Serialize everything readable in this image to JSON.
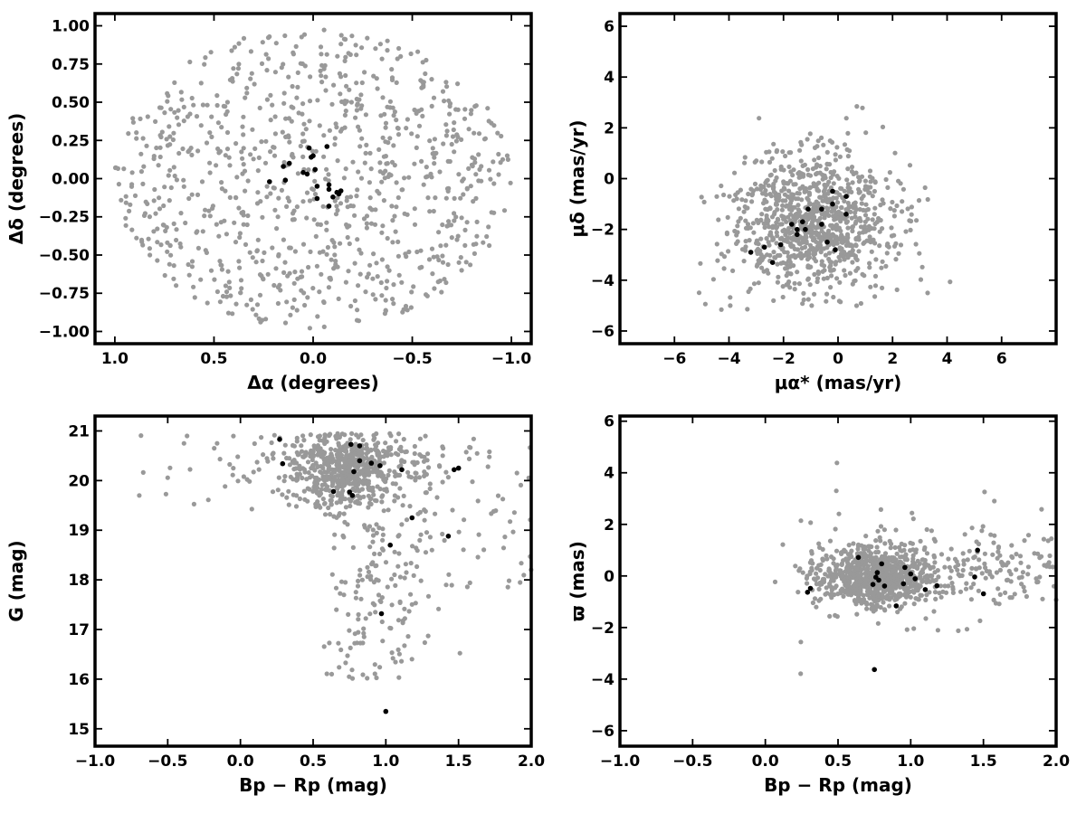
{
  "chart_data": [
    {
      "type": "scatter",
      "id": "sky",
      "xlabel": "Δα (degrees)",
      "ylabel": "Δδ (degrees)",
      "xlim": [
        1.1,
        -1.1
      ],
      "ylim": [
        -1.08,
        1.08
      ],
      "x_ticks": [
        1.0,
        0.5,
        0.0,
        -0.5,
        -1.0
      ],
      "x_tick_labels": [
        "1.0",
        "0.5",
        "0.0",
        "−0.5",
        "−1.0"
      ],
      "y_ticks": [
        -1.0,
        -0.75,
        -0.5,
        -0.25,
        0.0,
        0.25,
        0.5,
        0.75,
        1.0
      ],
      "y_tick_labels": [
        "−1.00",
        "−0.75",
        "−0.50",
        "−0.25",
        "0.00",
        "0.25",
        "0.50",
        "0.75",
        "1.00"
      ],
      "series": [
        {
          "color": "#999999",
          "generated": {
            "shape": "disk",
            "cx": 0.0,
            "cy": 0.0,
            "rx": 1.0,
            "ry": 0.98,
            "n": 900,
            "seed": 11
          }
        },
        {
          "color": "#000000",
          "points": [
            [
              0.02,
              0.2
            ],
            [
              0.0,
              0.15
            ],
            [
              0.01,
              0.14
            ],
            [
              -0.07,
              0.21
            ],
            [
              0.12,
              0.1
            ],
            [
              0.15,
              0.08
            ],
            [
              -0.01,
              0.06
            ],
            [
              -0.13,
              -0.1
            ],
            [
              0.03,
              0.03
            ],
            [
              0.14,
              -0.01
            ],
            [
              0.22,
              -0.02
            ],
            [
              -0.08,
              -0.04
            ],
            [
              -0.02,
              -0.05
            ],
            [
              -0.08,
              -0.07
            ],
            [
              -0.12,
              -0.09
            ],
            [
              -0.14,
              -0.08
            ],
            [
              -0.1,
              -0.12
            ],
            [
              -0.02,
              -0.13
            ],
            [
              -0.08,
              -0.18
            ],
            [
              0.05,
              0.04
            ]
          ]
        }
      ]
    },
    {
      "type": "scatter",
      "id": "pm",
      "xlabel": "μα* (mas/yr)",
      "ylabel": "μδ (mas/yr)",
      "xlim": [
        -8,
        8
      ],
      "ylim": [
        -6.5,
        6.5
      ],
      "x_ticks": [
        -6,
        -4,
        -2,
        0,
        2,
        4,
        6
      ],
      "x_tick_labels": [
        "−6",
        "−4",
        "−2",
        "0",
        "2",
        "4",
        "6"
      ],
      "y_ticks": [
        -6,
        -4,
        -2,
        0,
        2,
        4,
        6
      ],
      "y_tick_labels": [
        "−6",
        "−4",
        "−2",
        "0",
        "2",
        "4",
        "6"
      ],
      "series": [
        {
          "color": "#999999",
          "generated": {
            "shape": "gauss",
            "cx": -1.0,
            "cy": -1.8,
            "sx": 1.5,
            "sy": 1.4,
            "n": 950,
            "seed": 23,
            "clip": [
              -5.2,
              4.8,
              -5.2,
              5.0
            ]
          }
        },
        {
          "color": "#000000",
          "points": [
            [
              -0.2,
              -0.5
            ],
            [
              0.3,
              -0.7
            ],
            [
              -0.6,
              -1.2
            ],
            [
              -0.2,
              -1.0
            ],
            [
              0.3,
              -1.4
            ],
            [
              -1.1,
              -1.2
            ],
            [
              -1.3,
              -1.7
            ],
            [
              -0.6,
              -1.8
            ],
            [
              -1.7,
              -1.8
            ],
            [
              -1.5,
              -2.0
            ],
            [
              -1.2,
              -2.0
            ],
            [
              -1.5,
              -2.2
            ],
            [
              -0.4,
              -2.5
            ],
            [
              -2.1,
              -2.6
            ],
            [
              -2.7,
              -2.7
            ],
            [
              -0.1,
              -2.8
            ],
            [
              -3.2,
              -2.9
            ],
            [
              -2.4,
              -3.3
            ]
          ]
        }
      ]
    },
    {
      "type": "scatter",
      "id": "cmd",
      "xlabel": "Bp − Rp (mag)",
      "ylabel": "G (mag)",
      "xlim": [
        -1.0,
        2.0
      ],
      "ylim": [
        14.65,
        21.3
      ],
      "x_ticks": [
        -1.0,
        -0.5,
        0.0,
        0.5,
        1.0,
        1.5,
        2.0
      ],
      "x_tick_labels": [
        "−1.0",
        "−0.5",
        "0.0",
        "0.5",
        "1.0",
        "1.5",
        "2.0"
      ],
      "y_ticks": [
        15,
        16,
        17,
        18,
        19,
        20,
        21
      ],
      "y_tick_labels": [
        "15",
        "16",
        "17",
        "18",
        "19",
        "20",
        "21"
      ],
      "series": [
        {
          "color": "#999999",
          "generated": {
            "shape": "cmd",
            "n": 900,
            "seed": 37
          }
        },
        {
          "color": "#000000",
          "points": [
            [
              0.27,
              20.83
            ],
            [
              0.29,
              20.34
            ],
            [
              0.76,
              20.73
            ],
            [
              0.82,
              20.7
            ],
            [
              0.82,
              20.4
            ],
            [
              0.9,
              20.35
            ],
            [
              0.96,
              20.3
            ],
            [
              1.11,
              20.22
            ],
            [
              0.78,
              20.18
            ],
            [
              1.47,
              20.22
            ],
            [
              1.5,
              20.25
            ],
            [
              0.64,
              19.78
            ],
            [
              0.75,
              19.77
            ],
            [
              0.77,
              19.7
            ],
            [
              1.18,
              19.25
            ],
            [
              1.43,
              18.88
            ],
            [
              1.03,
              18.7
            ],
            [
              0.97,
              17.32
            ],
            [
              1.0,
              15.35
            ]
          ]
        }
      ]
    },
    {
      "type": "scatter",
      "id": "parallax",
      "xlabel": "Bp − Rp (mag)",
      "ylabel": "ϖ (mas)",
      "xlim": [
        -1.0,
        2.0
      ],
      "ylim": [
        -6.6,
        6.2
      ],
      "x_ticks": [
        -1.0,
        -0.5,
        0.0,
        0.5,
        1.0,
        1.5,
        2.0
      ],
      "x_tick_labels": [
        "−1.0",
        "−0.5",
        "0.0",
        "0.5",
        "1.0",
        "1.5",
        "2.0"
      ],
      "y_ticks": [
        -6,
        -4,
        -2,
        0,
        2,
        4,
        6
      ],
      "y_tick_labels": [
        "−6",
        "−4",
        "−2",
        "0",
        "2",
        "4",
        "6"
      ],
      "series": [
        {
          "color": "#999999",
          "generated": {
            "shape": "plx",
            "n": 1000,
            "seed": 53
          }
        },
        {
          "color": "#000000",
          "points": [
            [
              0.29,
              -0.63
            ],
            [
              0.31,
              -0.48
            ],
            [
              0.64,
              0.72
            ],
            [
              0.8,
              0.47
            ],
            [
              0.77,
              0.13
            ],
            [
              0.76,
              -0.05
            ],
            [
              0.78,
              -0.16
            ],
            [
              0.82,
              -0.39
            ],
            [
              0.74,
              -0.33
            ],
            [
              0.96,
              0.33
            ],
            [
              1.0,
              0.08
            ],
            [
              1.03,
              -0.11
            ],
            [
              0.95,
              -0.3
            ],
            [
              1.1,
              -0.53
            ],
            [
              1.18,
              -0.38
            ],
            [
              1.44,
              -0.04
            ],
            [
              1.46,
              1.0
            ],
            [
              1.5,
              -0.69
            ],
            [
              0.9,
              -1.16
            ],
            [
              0.75,
              -3.63
            ]
          ]
        }
      ]
    }
  ]
}
